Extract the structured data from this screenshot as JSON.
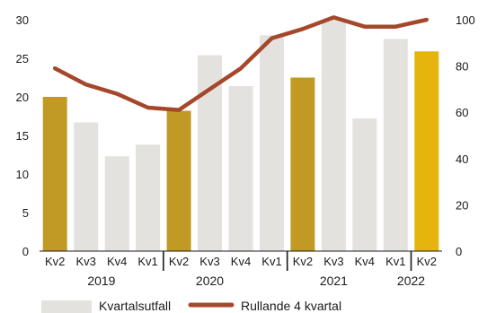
{
  "chart_data": {
    "type": "bar",
    "categories": [
      "Kv2",
      "Kv3",
      "Kv4",
      "Kv1",
      "Kv2",
      "Kv3",
      "Kv4",
      "Kv1",
      "Kv2",
      "Kv3",
      "Kv4",
      "Kv1",
      "Kv2"
    ],
    "years": [
      {
        "label": "2019",
        "start": 0,
        "end": 3
      },
      {
        "label": "2020",
        "start": 3,
        "end": 7
      },
      {
        "label": "2021",
        "start": 7,
        "end": 11
      },
      {
        "label": "2022",
        "start": 11,
        "end": 12
      }
    ],
    "series": [
      {
        "name": "Kvartalsutfall",
        "axis": "left",
        "values": [
          20.0,
          16.7,
          12.3,
          13.8,
          18.2,
          25.4,
          21.4,
          28.0,
          22.5,
          30.0,
          17.2,
          27.5,
          25.9
        ]
      },
      {
        "name": "Rullande 4 kvartal",
        "axis": "right",
        "values": [
          79,
          72,
          68,
          62,
          61,
          70,
          79,
          92,
          96,
          101,
          97,
          97,
          100
        ]
      }
    ],
    "ylim_left": [
      0,
      30
    ],
    "ylim_right": [
      0,
      100
    ],
    "yticks_left": [
      0,
      5,
      10,
      15,
      20,
      25,
      30
    ],
    "yticks_right": [
      0,
      20,
      40,
      60,
      80,
      100
    ],
    "bar_colors": [
      "#c19a26",
      "#e4e2df",
      "#e4e2df",
      "#e4e2df",
      "#c19a26",
      "#e4e2df",
      "#e4e2df",
      "#e4e2df",
      "#c19a26",
      "#e4e2df",
      "#e4e2df",
      "#e4e2df",
      "#e5b50e"
    ],
    "line_color": "#a5472b",
    "legend_position": "bottom",
    "grid": false
  }
}
